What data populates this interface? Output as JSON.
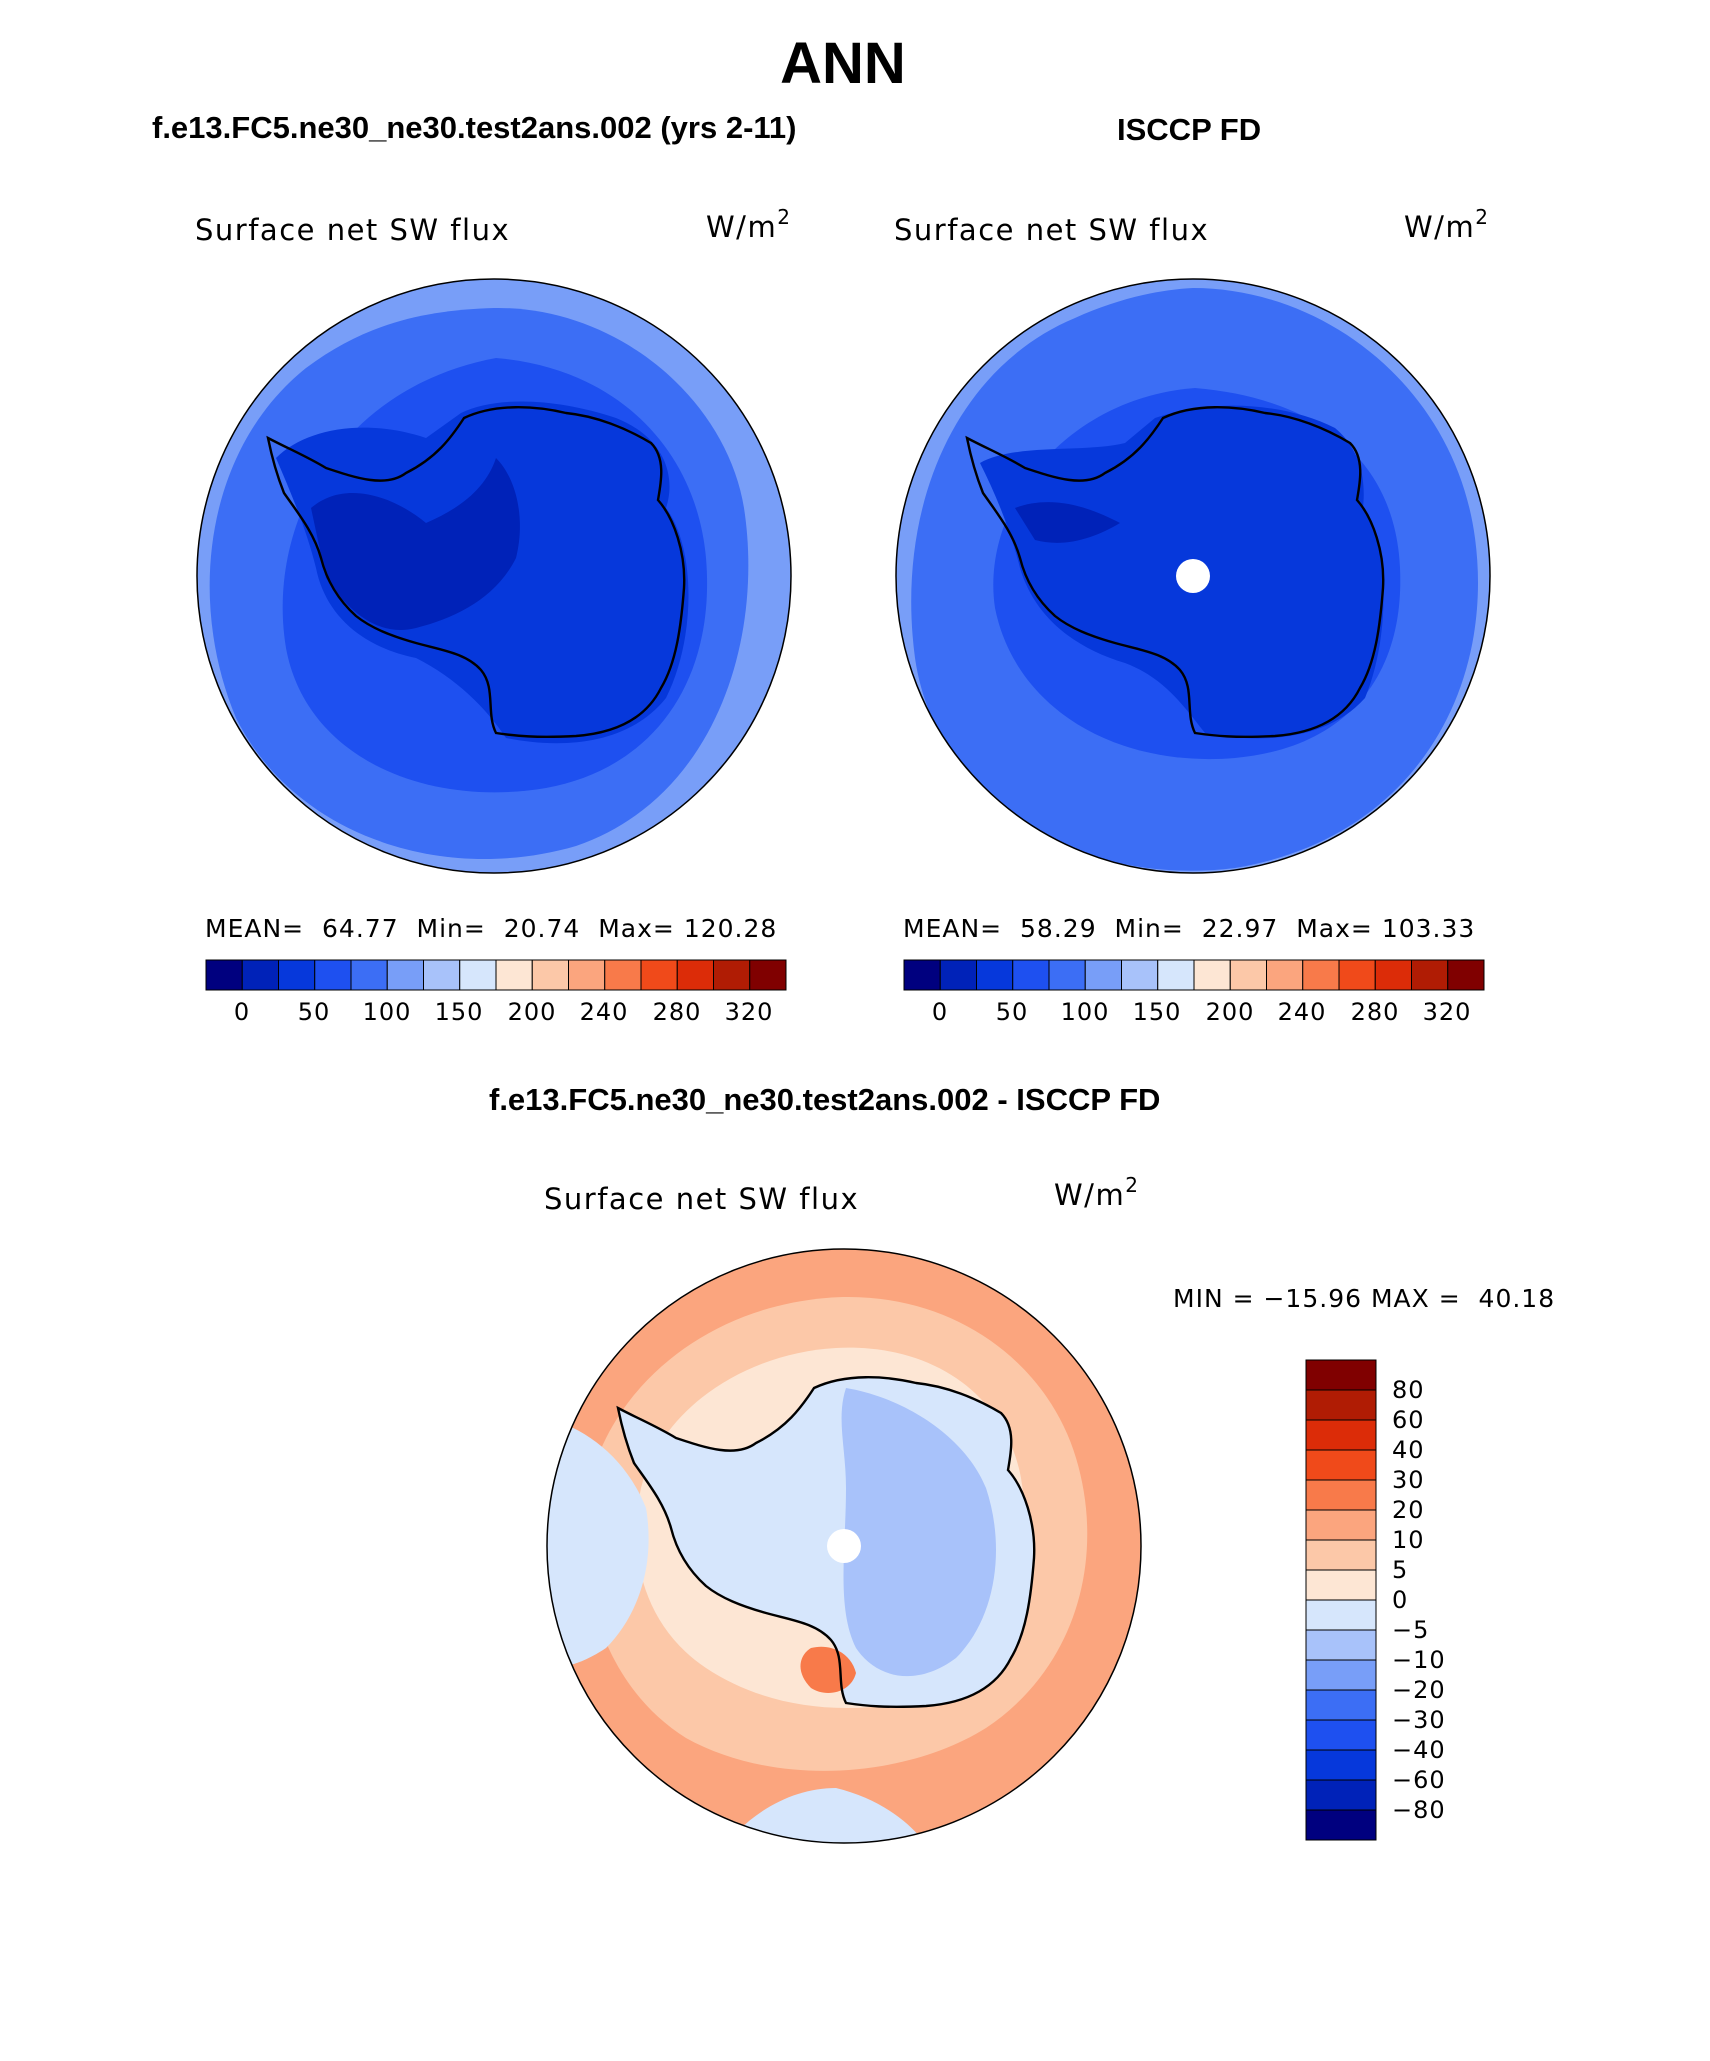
{
  "title": "ANN",
  "panels": [
    {
      "heading": "f.e13.FC5.ne30_ne30.test2ans.002 (yrs 2-11)",
      "variable": "Surface net SW flux",
      "units_base": "W/m",
      "units_exp": "2",
      "mean_label": "MEAN=",
      "mean": "64.77",
      "min_label": "Min=",
      "min": "20.74",
      "max_label": "Max=",
      "max": "120.28",
      "colorbar_ticks": [
        "0",
        "50",
        "100",
        "150",
        "200",
        "240",
        "280",
        "320"
      ]
    },
    {
      "heading": "ISCCP FD",
      "variable": "Surface net SW flux",
      "units_base": "W/m",
      "units_exp": "2",
      "mean_label": "MEAN=",
      "mean": "58.29",
      "min_label": "Min=",
      "min": "22.97",
      "max_label": "Max=",
      "max": "103.33",
      "colorbar_ticks": [
        "0",
        "50",
        "100",
        "150",
        "200",
        "240",
        "280",
        "320"
      ]
    }
  ],
  "difference": {
    "heading": "f.e13.FC5.ne30_ne30.test2ans.002 - ISCCP FD",
    "variable": "Surface net SW flux",
    "units_base": "W/m",
    "units_exp": "2",
    "minmax": "MIN = −15.96 MAX =  40.18",
    "colorbar_ticks": [
      "80",
      "60",
      "40",
      "30",
      "20",
      "10",
      "5",
      "0",
      "−5",
      "−10",
      "−20",
      "−30",
      "−40",
      "−60",
      "−80"
    ]
  },
  "colors": {
    "abs_scale": [
      "#00007f",
      "#0022b8",
      "#0638db",
      "#1e50f0",
      "#3c6ef5",
      "#789ef8",
      "#a8c2fa",
      "#d6e6fc",
      "#fde6d4",
      "#fcc8a8",
      "#fba57e",
      "#f87a4a",
      "#f04a1a",
      "#dc2c08",
      "#b01c04",
      "#800000"
    ],
    "diff_scale": [
      "#00007f",
      "#0022b8",
      "#0638db",
      "#1e50f0",
      "#3c6ef5",
      "#789ef8",
      "#a8c2fa",
      "#d6e6fc",
      "#fde6d4",
      "#fcc8a8",
      "#fba57e",
      "#f87a4a",
      "#f04a1a",
      "#dc2c08",
      "#b01c04",
      "#800000"
    ]
  }
}
